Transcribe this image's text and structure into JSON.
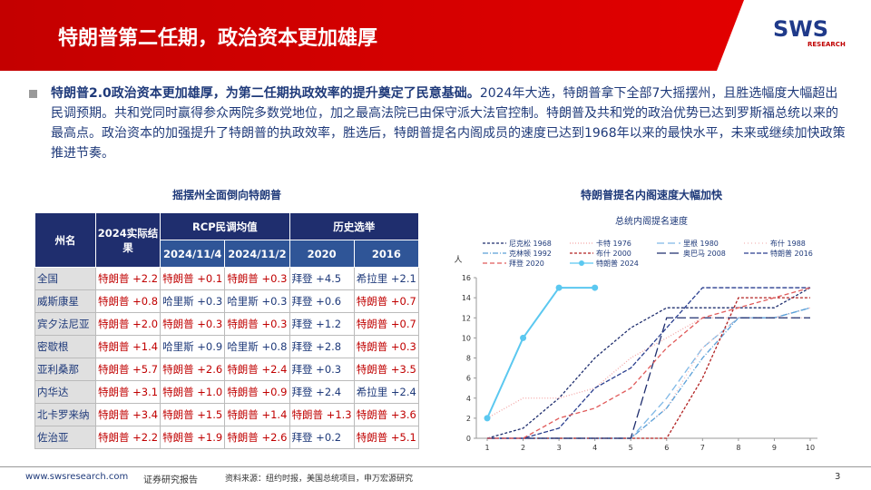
{
  "header": {
    "title": "特朗普第二任期，政治资本更加雄厚",
    "logo": "SWS",
    "logo_sub": "RESEARCH"
  },
  "body": {
    "bold": "特朗普2.0政治资本更加雄厚，为第二任期执政效率的提升奠定了民意基础。",
    "text": "2024年大选，特朗普拿下全部7大摇摆州，且胜选幅度大幅超出民调预期。共和党同时赢得参众两院多数党地位，加之最高法院已由保守派大法官控制。特朗普及共和党的政治优势已达到罗斯福总统以来的最高点。政治资本的加强提升了特朗普的执政效率，胜选后，特朗普提名内阁成员的速度已达到1968年以来的最快水平，未来或继续加快政策推进节奏。"
  },
  "table": {
    "title": "摇摆州全面倒向特朗普",
    "header": [
      "州名",
      "2024实际结果",
      "RCP民调均值",
      "历史选举",
      "2024/11/4",
      "2024/11/2",
      "2020",
      "2016"
    ],
    "rows": [
      [
        "全国",
        "特朗普 +2.2",
        "特朗普 +0.1",
        "特朗普 +0.3",
        "拜登 +4.5",
        "希拉里 +2.1"
      ],
      [
        "威斯康星",
        "特朗普 +0.8",
        "哈里斯 +0.3",
        "哈里斯 +0.3",
        "拜登 +0.6",
        "特朗普 +0.7"
      ],
      [
        "宾夕法尼亚",
        "特朗普 +2.0",
        "特朗普 +0.3",
        "特朗普 +0.3",
        "拜登 +1.2",
        "特朗普 +0.7"
      ],
      [
        "密歇根",
        "特朗普 +1.4",
        "哈里斯 +0.9",
        "哈里斯 +0.8",
        "拜登 +2.8",
        "特朗普 +0.3"
      ],
      [
        "亚利桑那",
        "特朗普 +5.7",
        "特朗普 +2.6",
        "特朗普 +2.4",
        "拜登 +0.3",
        "特朗普 +3.5"
      ],
      [
        "内华达",
        "特朗普 +3.1",
        "特朗普 +1.0",
        "特朗普 +0.9",
        "拜登 +2.4",
        "希拉里 +2.4"
      ],
      [
        "北卡罗来纳",
        "特朗普 +3.4",
        "特朗普 +1.5",
        "特朗普 +1.4",
        "特朗普 +1.3",
        "特朗普 +3.6"
      ],
      [
        "佐治亚",
        "特朗普 +2.2",
        "特朗普 +1.9",
        "特朗普 +2.6",
        "拜登 +0.2",
        "特朗普 +5.1"
      ]
    ]
  },
  "chart_data": {
    "type": "line",
    "title": "特朗普提名内阁速度大幅加快",
    "subtitle": "总统内阁提名速度",
    "y_label": "人",
    "x": [
      1,
      2,
      3,
      4,
      5,
      6,
      7,
      8,
      9,
      10
    ],
    "xlim": [
      1,
      10
    ],
    "xticks": [
      1,
      2,
      3,
      4,
      5,
      6,
      7,
      8,
      9,
      10
    ],
    "ylim": [
      0,
      16
    ],
    "yticks": [
      0,
      2,
      4,
      6,
      8,
      10,
      12,
      14,
      16
    ],
    "series": [
      {
        "name": "尼克松 1968",
        "color": "#1f2e6e",
        "dash": "3,2",
        "values": [
          0,
          1,
          4,
          8,
          11,
          13,
          13,
          13,
          13,
          15
        ]
      },
      {
        "name": "卡特 1976",
        "color": "#f4a6a6",
        "dash": "1,2",
        "values": [
          2,
          4,
          4,
          5,
          8,
          10,
          12,
          12,
          12,
          13
        ]
      },
      {
        "name": "里根 1980",
        "color": "#7fb8e6",
        "dash": "8,4",
        "values": [
          0,
          0,
          0,
          0,
          0,
          4,
          9,
          12,
          12,
          13
        ]
      },
      {
        "name": "布什 1988",
        "color": "#f2b8b8",
        "dash": "1,3",
        "values": [
          0,
          0,
          0,
          0,
          0,
          3,
          9,
          12,
          12,
          12
        ]
      },
      {
        "name": "克林顿 1992",
        "color": "#5aa0d8",
        "dash": "6,2,1,2",
        "values": [
          0,
          0,
          0,
          0,
          0,
          3,
          8,
          12,
          12,
          13
        ]
      },
      {
        "name": "布什 2000",
        "color": "#b22222",
        "dash": "3,2",
        "values": [
          0,
          0,
          0,
          0,
          0,
          0,
          6,
          14,
          14,
          14
        ]
      },
      {
        "name": "奥巴马 2008",
        "color": "#1f2e6e",
        "dash": "10,4",
        "values": [
          0,
          0,
          0,
          0,
          0,
          12,
          12,
          12,
          12,
          12
        ]
      },
      {
        "name": "特朗普 2016",
        "color": "#2a3f8f",
        "dash": "5,2",
        "values": [
          0,
          0,
          1,
          5,
          7,
          11,
          15,
          15,
          15,
          15
        ]
      },
      {
        "name": "拜登 2020",
        "color": "#e05a5a",
        "dash": "5,3",
        "values": [
          0,
          0,
          2,
          3,
          5,
          9,
          12,
          13,
          14,
          15
        ]
      },
      {
        "name": "特朗普 2024",
        "color": "#5bc8f0",
        "dash": "",
        "marker": true,
        "values": [
          2,
          10,
          15,
          15,
          null,
          null,
          null,
          null,
          null,
          null
        ]
      }
    ]
  },
  "footer": {
    "url": "www.swsresearch.com",
    "tag": "证券研究报告",
    "source": "资料来源：纽约时报，美国总统项目，申万宏源研究",
    "page": "3"
  }
}
